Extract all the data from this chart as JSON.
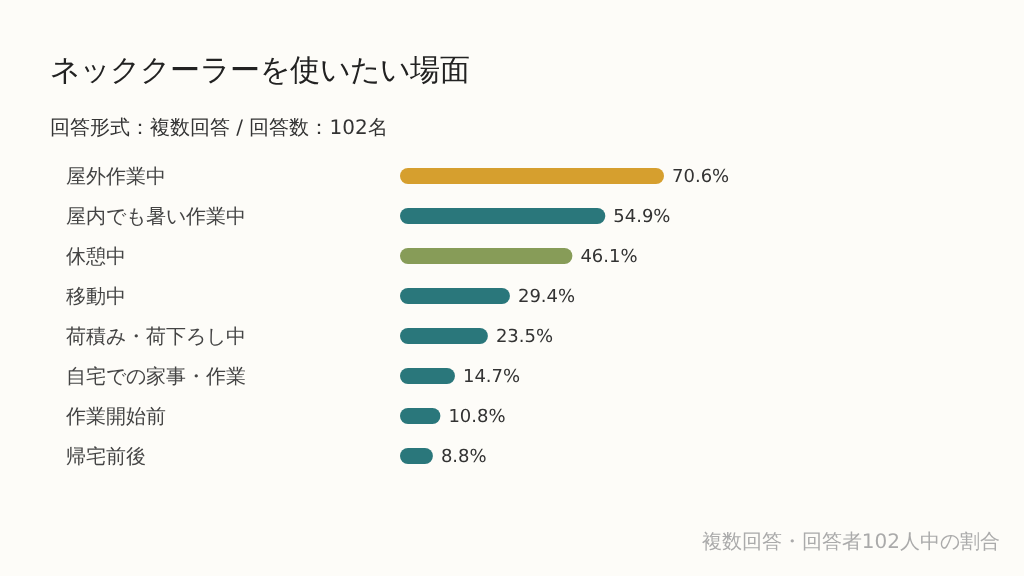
{
  "chart_data": {
    "type": "bar",
    "orientation": "horizontal",
    "title": "ネッククーラーを使いたい場面",
    "subtitle": "回答形式：複数回答 / 回答数：102名",
    "categories": [
      "屋外作業中",
      "屋内でも暑い作業中",
      "休憩中",
      "移動中",
      "荷積み・荷下ろし中",
      "自宅での家事・作業",
      "作業開始前",
      "帰宅前後"
    ],
    "values": [
      70.6,
      54.9,
      46.1,
      29.4,
      23.5,
      14.7,
      10.8,
      8.8
    ],
    "colors": [
      "#d69f2e",
      "#2a777b",
      "#879c58",
      "#2a777b",
      "#2a777b",
      "#2a777b",
      "#2a777b",
      "#2a777b"
    ],
    "value_labels": [
      "70.6%",
      "54.9%",
      "46.1%",
      "29.4%",
      "23.5%",
      "14.7%",
      "10.8%",
      "8.8%"
    ],
    "tick_labels": "y",
    "annotations": [
      "複数回答・回答者102人中の割合"
    ]
  }
}
